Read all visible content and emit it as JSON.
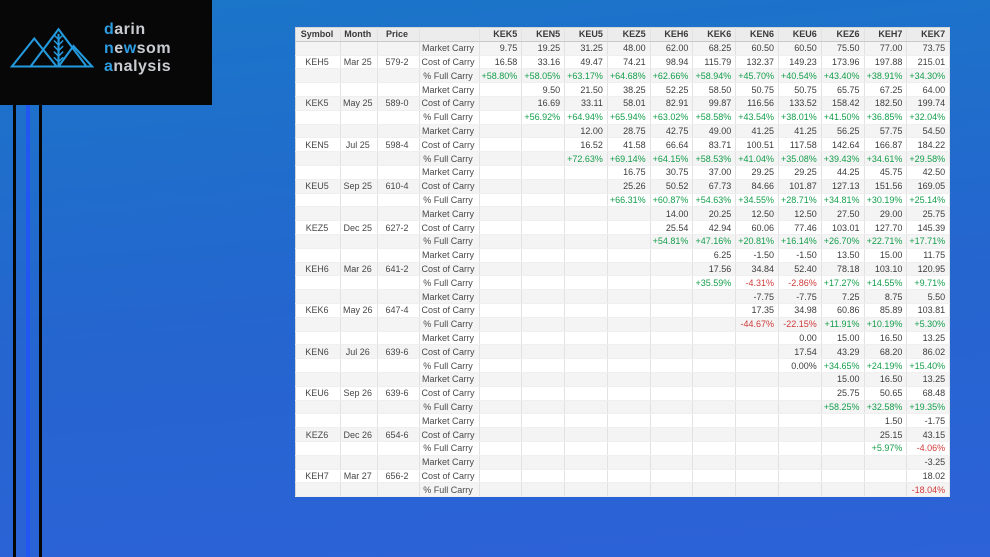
{
  "colors": {
    "positive": "#149e4b",
    "negative": "#cf3a3a",
    "accent_blue": "#2d9ce0",
    "stripe_blue": "#2256f2",
    "logo_gray": "#c9ccd1"
  },
  "logo": {
    "lines": [
      {
        "segments": [
          {
            "text": "d",
            "highlight": true
          },
          {
            "text": "arin",
            "highlight": false
          }
        ]
      },
      {
        "segments": [
          {
            "text": "n",
            "highlight": true
          },
          {
            "text": "e",
            "highlight": false
          },
          {
            "text": "w",
            "highlight": true
          },
          {
            "text": "som",
            "highlight": false
          }
        ]
      },
      {
        "segments": [
          {
            "text": "a",
            "highlight": true
          },
          {
            "text": "nalysis",
            "highlight": false
          }
        ]
      }
    ]
  },
  "table": {
    "corner_headers": [
      "Symbol",
      "Month",
      "Price",
      ""
    ],
    "contract_headers": [
      "KEK5",
      "KEN5",
      "KEU5",
      "KEZ5",
      "KEH6",
      "KEK6",
      "KEN6",
      "KEU6",
      "KEZ6",
      "KEH7",
      "KEK7"
    ],
    "row_labels": {
      "market": "Market Carry",
      "cost": "Cost of Carry",
      "pct": "% Full Carry"
    },
    "groups": [
      {
        "symbol": "KEH5",
        "month": "Mar 25",
        "price": "579-2",
        "market_carry": [
          "9.75",
          "19.25",
          "31.25",
          "48.00",
          "62.00",
          "68.25",
          "60.50",
          "60.50",
          "75.50",
          "77.00",
          "73.75"
        ],
        "cost_of_carry": [
          "16.58",
          "33.16",
          "49.47",
          "74.21",
          "98.94",
          "115.79",
          "132.37",
          "149.23",
          "173.96",
          "197.88",
          "215.01"
        ],
        "pct_full_carry": [
          "+58.80%",
          "+58.05%",
          "+63.17%",
          "+64.68%",
          "+62.66%",
          "+58.94%",
          "+45.70%",
          "+40.54%",
          "+43.40%",
          "+38.91%",
          "+34.30%"
        ]
      },
      {
        "symbol": "KEK5",
        "month": "May 25",
        "price": "589-0",
        "market_carry": [
          "",
          "9.50",
          "21.50",
          "38.25",
          "52.25",
          "58.50",
          "50.75",
          "50.75",
          "65.75",
          "67.25",
          "64.00"
        ],
        "cost_of_carry": [
          "",
          "16.69",
          "33.11",
          "58.01",
          "82.91",
          "99.87",
          "116.56",
          "133.52",
          "158.42",
          "182.50",
          "199.74"
        ],
        "pct_full_carry": [
          "",
          "+56.92%",
          "+64.94%",
          "+65.94%",
          "+63.02%",
          "+58.58%",
          "+43.54%",
          "+38.01%",
          "+41.50%",
          "+36.85%",
          "+32.04%"
        ]
      },
      {
        "symbol": "KEN5",
        "month": "Jul 25",
        "price": "598-4",
        "market_carry": [
          "",
          "",
          "12.00",
          "28.75",
          "42.75",
          "49.00",
          "41.25",
          "41.25",
          "56.25",
          "57.75",
          "54.50"
        ],
        "cost_of_carry": [
          "",
          "",
          "16.52",
          "41.58",
          "66.64",
          "83.71",
          "100.51",
          "117.58",
          "142.64",
          "166.87",
          "184.22"
        ],
        "pct_full_carry": [
          "",
          "",
          "+72.63%",
          "+69.14%",
          "+64.15%",
          "+58.53%",
          "+41.04%",
          "+35.08%",
          "+39.43%",
          "+34.61%",
          "+29.58%"
        ]
      },
      {
        "symbol": "KEU5",
        "month": "Sep 25",
        "price": "610-4",
        "market_carry": [
          "",
          "",
          "",
          "16.75",
          "30.75",
          "37.00",
          "29.25",
          "29.25",
          "44.25",
          "45.75",
          "42.50"
        ],
        "cost_of_carry": [
          "",
          "",
          "",
          "25.26",
          "50.52",
          "67.73",
          "84.66",
          "101.87",
          "127.13",
          "151.56",
          "169.05"
        ],
        "pct_full_carry": [
          "",
          "",
          "",
          "+66.31%",
          "+60.87%",
          "+54.63%",
          "+34.55%",
          "+28.71%",
          "+34.81%",
          "+30.19%",
          "+25.14%"
        ]
      },
      {
        "symbol": "KEZ5",
        "month": "Dec 25",
        "price": "627-2",
        "market_carry": [
          "",
          "",
          "",
          "",
          "14.00",
          "20.25",
          "12.50",
          "12.50",
          "27.50",
          "29.00",
          "25.75"
        ],
        "cost_of_carry": [
          "",
          "",
          "",
          "",
          "25.54",
          "42.94",
          "60.06",
          "77.46",
          "103.01",
          "127.70",
          "145.39"
        ],
        "pct_full_carry": [
          "",
          "",
          "",
          "",
          "+54.81%",
          "+47.16%",
          "+20.81%",
          "+16.14%",
          "+26.70%",
          "+22.71%",
          "+17.71%"
        ]
      },
      {
        "symbol": "KEH6",
        "month": "Mar 26",
        "price": "641-2",
        "market_carry": [
          "",
          "",
          "",
          "",
          "",
          "6.25",
          "-1.50",
          "-1.50",
          "13.50",
          "15.00",
          "11.75"
        ],
        "cost_of_carry": [
          "",
          "",
          "",
          "",
          "",
          "17.56",
          "34.84",
          "52.40",
          "78.18",
          "103.10",
          "120.95"
        ],
        "pct_full_carry": [
          "",
          "",
          "",
          "",
          "",
          "+35.59%",
          "-4.31%",
          "-2.86%",
          "+17.27%",
          "+14.55%",
          "+9.71%"
        ]
      },
      {
        "symbol": "KEK6",
        "month": "May 26",
        "price": "647-4",
        "market_carry": [
          "",
          "",
          "",
          "",
          "",
          "",
          "-7.75",
          "-7.75",
          "7.25",
          "8.75",
          "5.50"
        ],
        "cost_of_carry": [
          "",
          "",
          "",
          "",
          "",
          "",
          "17.35",
          "34.98",
          "60.86",
          "85.89",
          "103.81"
        ],
        "pct_full_carry": [
          "",
          "",
          "",
          "",
          "",
          "",
          "-44.67%",
          "-22.15%",
          "+11.91%",
          "+10.19%",
          "+5.30%"
        ]
      },
      {
        "symbol": "KEN6",
        "month": "Jul 26",
        "price": "639-6",
        "market_carry": [
          "",
          "",
          "",
          "",
          "",
          "",
          "",
          "0.00",
          "15.00",
          "16.50",
          "13.25"
        ],
        "cost_of_carry": [
          "",
          "",
          "",
          "",
          "",
          "",
          "",
          "17.54",
          "43.29",
          "68.20",
          "86.02"
        ],
        "pct_full_carry": [
          "",
          "",
          "",
          "",
          "",
          "",
          "",
          "0.00%",
          "+34.65%",
          "+24.19%",
          "+15.40%"
        ]
      },
      {
        "symbol": "KEU6",
        "month": "Sep 26",
        "price": "639-6",
        "market_carry": [
          "",
          "",
          "",
          "",
          "",
          "",
          "",
          "",
          "15.00",
          "16.50",
          "13.25"
        ],
        "cost_of_carry": [
          "",
          "",
          "",
          "",
          "",
          "",
          "",
          "",
          "25.75",
          "50.65",
          "68.48"
        ],
        "pct_full_carry": [
          "",
          "",
          "",
          "",
          "",
          "",
          "",
          "",
          "+58.25%",
          "+32.58%",
          "+19.35%"
        ]
      },
      {
        "symbol": "KEZ6",
        "month": "Dec 26",
        "price": "654-6",
        "market_carry": [
          "",
          "",
          "",
          "",
          "",
          "",
          "",
          "",
          "",
          "1.50",
          "-1.75"
        ],
        "cost_of_carry": [
          "",
          "",
          "",
          "",
          "",
          "",
          "",
          "",
          "",
          "25.15",
          "43.15"
        ],
        "pct_full_carry": [
          "",
          "",
          "",
          "",
          "",
          "",
          "",
          "",
          "",
          "+5.97%",
          "-4.06%"
        ]
      },
      {
        "symbol": "KEH7",
        "month": "Mar 27",
        "price": "656-2",
        "market_carry": [
          "",
          "",
          "",
          "",
          "",
          "",
          "",
          "",
          "",
          "",
          "-3.25"
        ],
        "cost_of_carry": [
          "",
          "",
          "",
          "",
          "",
          "",
          "",
          "",
          "",
          "",
          "18.02"
        ],
        "pct_full_carry": [
          "",
          "",
          "",
          "",
          "",
          "",
          "",
          "",
          "",
          "",
          "-18.04%"
        ]
      }
    ]
  }
}
